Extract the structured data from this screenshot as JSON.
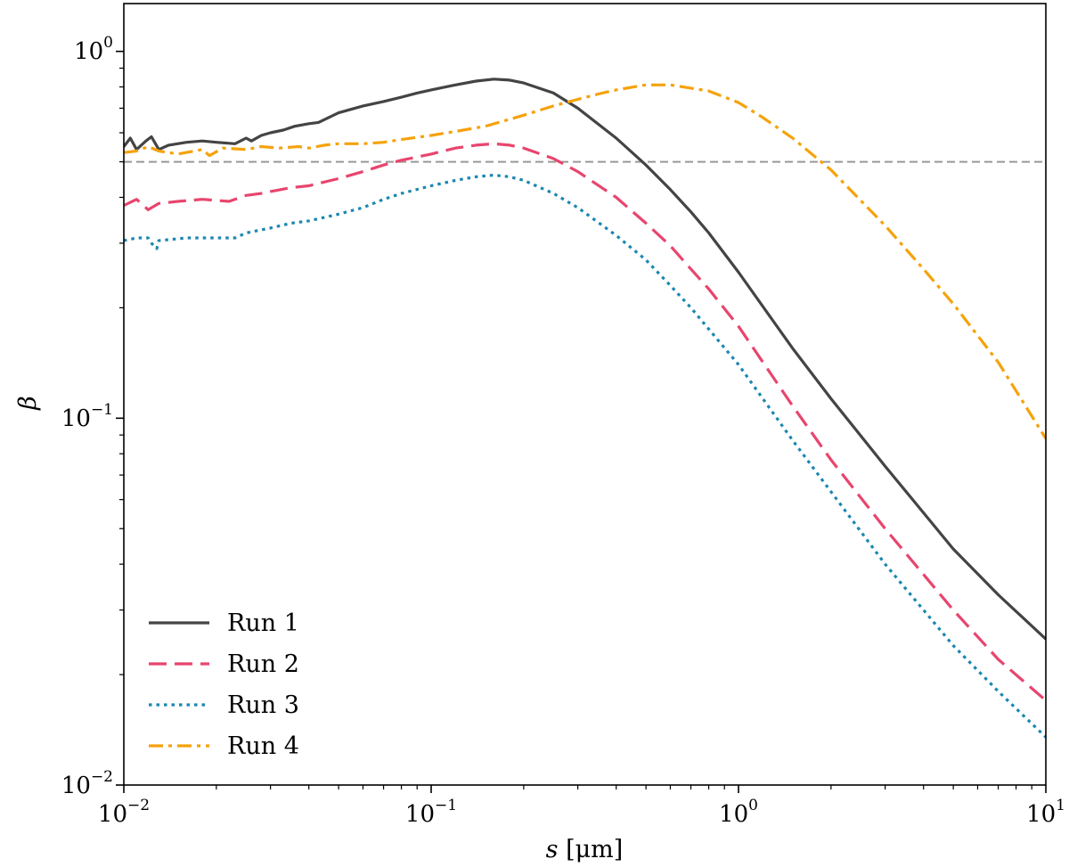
{
  "chart_data": {
    "type": "line",
    "title": "",
    "xlabel": {
      "var": "s",
      "unit": " [μm]"
    },
    "ylabel": "β",
    "xscale": "log",
    "yscale": "log",
    "xlim": [
      0.01,
      10
    ],
    "ylim": [
      0.01,
      1.35
    ],
    "x_ticks": [
      {
        "base": "10",
        "exp": "−2",
        "value": 0.01
      },
      {
        "base": "10",
        "exp": "−1",
        "value": 0.1
      },
      {
        "base": "10",
        "exp": "0",
        "value": 1
      },
      {
        "base": "10",
        "exp": "1",
        "value": 10
      }
    ],
    "y_ticks": [
      {
        "base": "10",
        "exp": "−2",
        "value": 0.01
      },
      {
        "base": "10",
        "exp": "−1",
        "value": 0.1
      },
      {
        "base": "10",
        "exp": "0",
        "value": 1
      }
    ],
    "reference_line": {
      "y": 0.5,
      "style": "dashed",
      "color": "#999999"
    },
    "legend_position": "lower-left",
    "series": [
      {
        "name": "Run 1",
        "color": "#444444",
        "style": "solid",
        "points": [
          [
            0.01,
            0.55
          ],
          [
            0.0105,
            0.58
          ],
          [
            0.011,
            0.54
          ],
          [
            0.0118,
            0.57
          ],
          [
            0.0123,
            0.585
          ],
          [
            0.013,
            0.54
          ],
          [
            0.014,
            0.555
          ],
          [
            0.016,
            0.565
          ],
          [
            0.018,
            0.57
          ],
          [
            0.02,
            0.565
          ],
          [
            0.023,
            0.56
          ],
          [
            0.025,
            0.58
          ],
          [
            0.026,
            0.57
          ],
          [
            0.028,
            0.59
          ],
          [
            0.03,
            0.6
          ],
          [
            0.033,
            0.61
          ],
          [
            0.036,
            0.625
          ],
          [
            0.04,
            0.635
          ],
          [
            0.043,
            0.64
          ],
          [
            0.05,
            0.68
          ],
          [
            0.06,
            0.71
          ],
          [
            0.07,
            0.73
          ],
          [
            0.08,
            0.75
          ],
          [
            0.09,
            0.77
          ],
          [
            0.1,
            0.785
          ],
          [
            0.12,
            0.81
          ],
          [
            0.14,
            0.83
          ],
          [
            0.16,
            0.84
          ],
          [
            0.18,
            0.835
          ],
          [
            0.2,
            0.82
          ],
          [
            0.25,
            0.77
          ],
          [
            0.3,
            0.7
          ],
          [
            0.4,
            0.58
          ],
          [
            0.5,
            0.49
          ],
          [
            0.6,
            0.42
          ],
          [
            0.7,
            0.365
          ],
          [
            0.8,
            0.32
          ],
          [
            1.0,
            0.25
          ],
          [
            1.5,
            0.155
          ],
          [
            2.0,
            0.113
          ],
          [
            3.0,
            0.074
          ],
          [
            5.0,
            0.044
          ],
          [
            7.0,
            0.033
          ],
          [
            10.0,
            0.025
          ]
        ]
      },
      {
        "name": "Run 2",
        "color": "#e8456e",
        "style": "dashed",
        "points": [
          [
            0.01,
            0.38
          ],
          [
            0.011,
            0.395
          ],
          [
            0.012,
            0.37
          ],
          [
            0.013,
            0.385
          ],
          [
            0.015,
            0.39
          ],
          [
            0.018,
            0.395
          ],
          [
            0.022,
            0.39
          ],
          [
            0.025,
            0.405
          ],
          [
            0.028,
            0.41
          ],
          [
            0.03,
            0.415
          ],
          [
            0.035,
            0.425
          ],
          [
            0.04,
            0.43
          ],
          [
            0.05,
            0.45
          ],
          [
            0.06,
            0.47
          ],
          [
            0.07,
            0.49
          ],
          [
            0.08,
            0.505
          ],
          [
            0.1,
            0.525
          ],
          [
            0.12,
            0.545
          ],
          [
            0.14,
            0.555
          ],
          [
            0.16,
            0.56
          ],
          [
            0.18,
            0.555
          ],
          [
            0.2,
            0.545
          ],
          [
            0.25,
            0.51
          ],
          [
            0.3,
            0.47
          ],
          [
            0.4,
            0.4
          ],
          [
            0.5,
            0.34
          ],
          [
            0.6,
            0.295
          ],
          [
            0.7,
            0.255
          ],
          [
            0.8,
            0.225
          ],
          [
            1.0,
            0.178
          ],
          [
            1.5,
            0.108
          ],
          [
            2.0,
            0.077
          ],
          [
            3.0,
            0.05
          ],
          [
            5.0,
            0.03
          ],
          [
            7.0,
            0.022
          ],
          [
            10.0,
            0.017
          ]
        ]
      },
      {
        "name": "Run 3",
        "color": "#1b87b0",
        "style": "dotted",
        "points": [
          [
            0.01,
            0.305
          ],
          [
            0.011,
            0.31
          ],
          [
            0.012,
            0.31
          ],
          [
            0.0123,
            0.3
          ],
          [
            0.0128,
            0.29
          ],
          [
            0.013,
            0.305
          ],
          [
            0.016,
            0.31
          ],
          [
            0.02,
            0.31
          ],
          [
            0.023,
            0.31
          ],
          [
            0.025,
            0.32
          ],
          [
            0.03,
            0.33
          ],
          [
            0.035,
            0.34
          ],
          [
            0.04,
            0.345
          ],
          [
            0.05,
            0.36
          ],
          [
            0.06,
            0.375
          ],
          [
            0.07,
            0.395
          ],
          [
            0.08,
            0.41
          ],
          [
            0.1,
            0.43
          ],
          [
            0.12,
            0.445
          ],
          [
            0.14,
            0.455
          ],
          [
            0.16,
            0.46
          ],
          [
            0.18,
            0.455
          ],
          [
            0.2,
            0.445
          ],
          [
            0.25,
            0.41
          ],
          [
            0.3,
            0.375
          ],
          [
            0.4,
            0.315
          ],
          [
            0.5,
            0.27
          ],
          [
            0.6,
            0.23
          ],
          [
            0.7,
            0.2
          ],
          [
            0.8,
            0.175
          ],
          [
            1.0,
            0.14
          ],
          [
            1.5,
            0.087
          ],
          [
            2.0,
            0.063
          ],
          [
            3.0,
            0.04
          ],
          [
            5.0,
            0.024
          ],
          [
            7.0,
            0.018
          ],
          [
            10.0,
            0.0135
          ]
        ]
      },
      {
        "name": "Run 4",
        "color": "#f5a20c",
        "style": "dashdot",
        "points": [
          [
            0.01,
            0.53
          ],
          [
            0.011,
            0.535
          ],
          [
            0.012,
            0.55
          ],
          [
            0.013,
            0.535
          ],
          [
            0.015,
            0.525
          ],
          [
            0.018,
            0.54
          ],
          [
            0.019,
            0.52
          ],
          [
            0.021,
            0.545
          ],
          [
            0.025,
            0.54
          ],
          [
            0.028,
            0.55
          ],
          [
            0.032,
            0.545
          ],
          [
            0.037,
            0.55
          ],
          [
            0.04,
            0.545
          ],
          [
            0.045,
            0.555
          ],
          [
            0.05,
            0.56
          ],
          [
            0.06,
            0.56
          ],
          [
            0.07,
            0.565
          ],
          [
            0.08,
            0.575
          ],
          [
            0.1,
            0.59
          ],
          [
            0.12,
            0.605
          ],
          [
            0.15,
            0.625
          ],
          [
            0.2,
            0.67
          ],
          [
            0.25,
            0.71
          ],
          [
            0.3,
            0.74
          ],
          [
            0.35,
            0.765
          ],
          [
            0.4,
            0.785
          ],
          [
            0.5,
            0.81
          ],
          [
            0.6,
            0.81
          ],
          [
            0.8,
            0.78
          ],
          [
            1.0,
            0.725
          ],
          [
            1.2,
            0.66
          ],
          [
            1.5,
            0.58
          ],
          [
            2.0,
            0.475
          ],
          [
            3.0,
            0.335
          ],
          [
            4.0,
            0.255
          ],
          [
            5.0,
            0.205
          ],
          [
            7.0,
            0.142
          ],
          [
            10.0,
            0.088
          ]
        ]
      }
    ]
  }
}
